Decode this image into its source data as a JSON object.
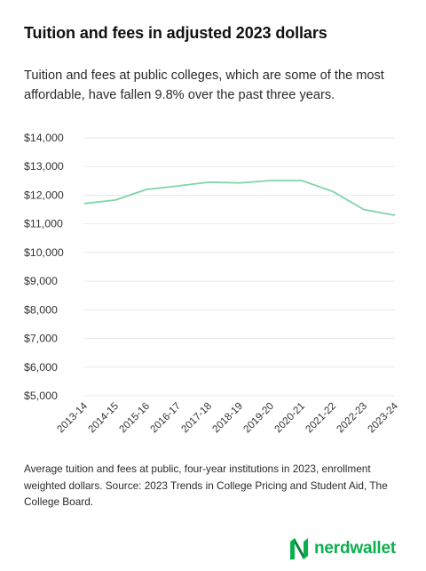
{
  "title": "Tuition and fees in adjusted 2023 dollars",
  "subtitle": "Tuition and fees at public colleges, which are some of the most affordable, have fallen 9.8% over the past three years.",
  "note": "Average tuition and fees at public, four-year institutions in 2023, enrollment weighted dollars. Source: 2023 Trends in College Pricing and Student Aid, The College Board.",
  "brand": {
    "name": "nerdwallet",
    "icon": "nerdwallet-logo-icon",
    "color": "#0bb04e"
  },
  "chart_data": {
    "type": "line",
    "title": "",
    "xlabel": "",
    "ylabel": "",
    "x": [
      "2013-14",
      "2014-15",
      "2015-16",
      "2016-17",
      "2017-18",
      "2018-19",
      "2019-20",
      "2020-21",
      "2021-22",
      "2022-23",
      "2023-24"
    ],
    "series": [
      {
        "values": [
          11710,
          11830,
          12200,
          12320,
          12450,
          12430,
          12510,
          12510,
          12130,
          11500,
          11300
        ],
        "color": "#7fd4a8"
      }
    ],
    "ylim": [
      5000,
      14000
    ],
    "yticks": [
      5000,
      6000,
      7000,
      8000,
      9000,
      10000,
      11000,
      12000,
      13000,
      14000
    ],
    "ytick_labels": [
      "$5,000",
      "$6,000",
      "$7,000",
      "$8,000",
      "$9,000",
      "$10,000",
      "$11,000",
      "$12,000",
      "$13,000",
      "$14,000"
    ],
    "grid": true,
    "gridcolor": "#e9e9e9"
  }
}
